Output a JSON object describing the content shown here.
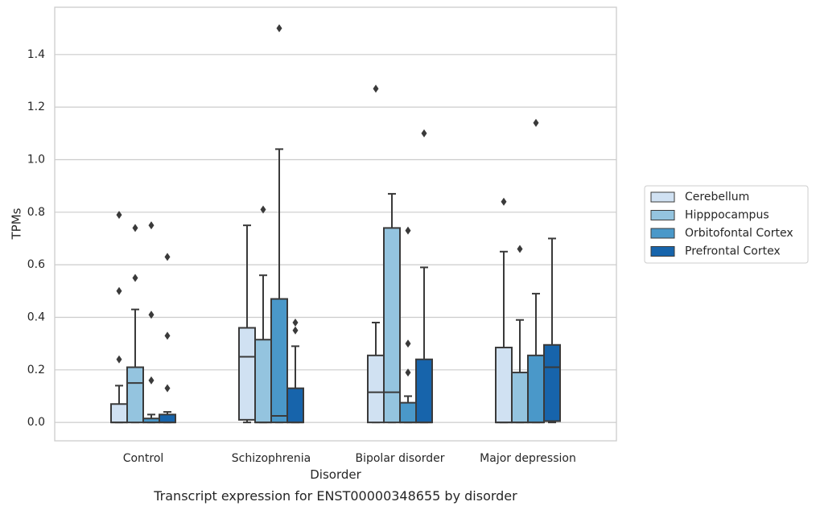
{
  "chart_data": {
    "type": "boxplot",
    "caption": "Transcript expression for ENST00000348655 by disorder",
    "xlabel": "Disorder",
    "ylabel": "TPMs",
    "ylim": [
      -0.07,
      1.58
    ],
    "yticks": [
      0.0,
      0.2,
      0.4,
      0.6,
      0.8,
      1.0,
      1.2,
      1.4
    ],
    "ytick_labels": [
      "0.0",
      "0.2",
      "0.4",
      "0.6",
      "0.8",
      "1.0",
      "1.2",
      "1.4"
    ],
    "grid": "horizontal",
    "legend_position": "right",
    "categories": [
      "Control",
      "Schizophrenia",
      "Bipolar disorder",
      "Major depression"
    ],
    "series": [
      {
        "name": "Cerebellum",
        "color": "#d0e1f2",
        "boxes": [
          {
            "q1": 0.0,
            "median": 0.0,
            "q3": 0.07,
            "whisker_low": 0.0,
            "whisker_high": 0.14,
            "outliers": [
              0.24,
              0.5,
              0.79
            ]
          },
          {
            "q1": 0.01,
            "median": 0.25,
            "q3": 0.36,
            "whisker_low": 0.0,
            "whisker_high": 0.75,
            "outliers": []
          },
          {
            "q1": 0.0,
            "median": 0.115,
            "q3": 0.255,
            "whisker_low": 0.0,
            "whisker_high": 0.38,
            "outliers": [
              1.27
            ]
          },
          {
            "q1": 0.0,
            "median": 0.0,
            "q3": 0.285,
            "whisker_low": 0.0,
            "whisker_high": 0.65,
            "outliers": [
              0.84
            ]
          }
        ]
      },
      {
        "name": "Hipppocampus",
        "color": "#94c4df",
        "boxes": [
          {
            "q1": 0.0,
            "median": 0.15,
            "q3": 0.21,
            "whisker_low": 0.0,
            "whisker_high": 0.43,
            "outliers": [
              0.55,
              0.74
            ]
          },
          {
            "q1": 0.0,
            "median": 0.0,
            "q3": 0.315,
            "whisker_low": 0.0,
            "whisker_high": 0.56,
            "outliers": [
              0.81
            ]
          },
          {
            "q1": 0.0,
            "median": 0.115,
            "q3": 0.74,
            "whisker_low": 0.0,
            "whisker_high": 0.87,
            "outliers": []
          },
          {
            "q1": 0.0,
            "median": 0.0,
            "q3": 0.19,
            "whisker_low": 0.0,
            "whisker_high": 0.39,
            "outliers": [
              0.66
            ]
          }
        ]
      },
      {
        "name": "Orbitofontal Cortex",
        "color": "#4a98c9",
        "boxes": [
          {
            "q1": 0.0,
            "median": 0.0,
            "q3": 0.015,
            "whisker_low": 0.0,
            "whisker_high": 0.03,
            "outliers": [
              0.16,
              0.41,
              0.75
            ]
          },
          {
            "q1": 0.0,
            "median": 0.025,
            "q3": 0.47,
            "whisker_low": 0.0,
            "whisker_high": 1.04,
            "outliers": [
              1.5
            ]
          },
          {
            "q1": 0.0,
            "median": 0.0,
            "q3": 0.075,
            "whisker_low": 0.0,
            "whisker_high": 0.1,
            "outliers": [
              0.19,
              0.3,
              0.73
            ]
          },
          {
            "q1": 0.0,
            "median": 0.0,
            "q3": 0.255,
            "whisker_low": 0.0,
            "whisker_high": 0.49,
            "outliers": [
              1.14
            ]
          }
        ]
      },
      {
        "name": "Prefrontal Cortex",
        "color": "#1764ab",
        "boxes": [
          {
            "q1": 0.0,
            "median": 0.0,
            "q3": 0.03,
            "whisker_low": 0.0,
            "whisker_high": 0.04,
            "outliers": [
              0.13,
              0.33,
              0.63
            ]
          },
          {
            "q1": 0.0,
            "median": 0.0,
            "q3": 0.13,
            "whisker_low": 0.0,
            "whisker_high": 0.29,
            "outliers": [
              0.35,
              0.38
            ]
          },
          {
            "q1": 0.0,
            "median": 0.0,
            "q3": 0.24,
            "whisker_low": 0.0,
            "whisker_high": 0.59,
            "outliers": [
              1.1
            ]
          },
          {
            "q1": 0.005,
            "median": 0.21,
            "q3": 0.295,
            "whisker_low": 0.0,
            "whisker_high": 0.7,
            "outliers": []
          }
        ]
      }
    ]
  }
}
